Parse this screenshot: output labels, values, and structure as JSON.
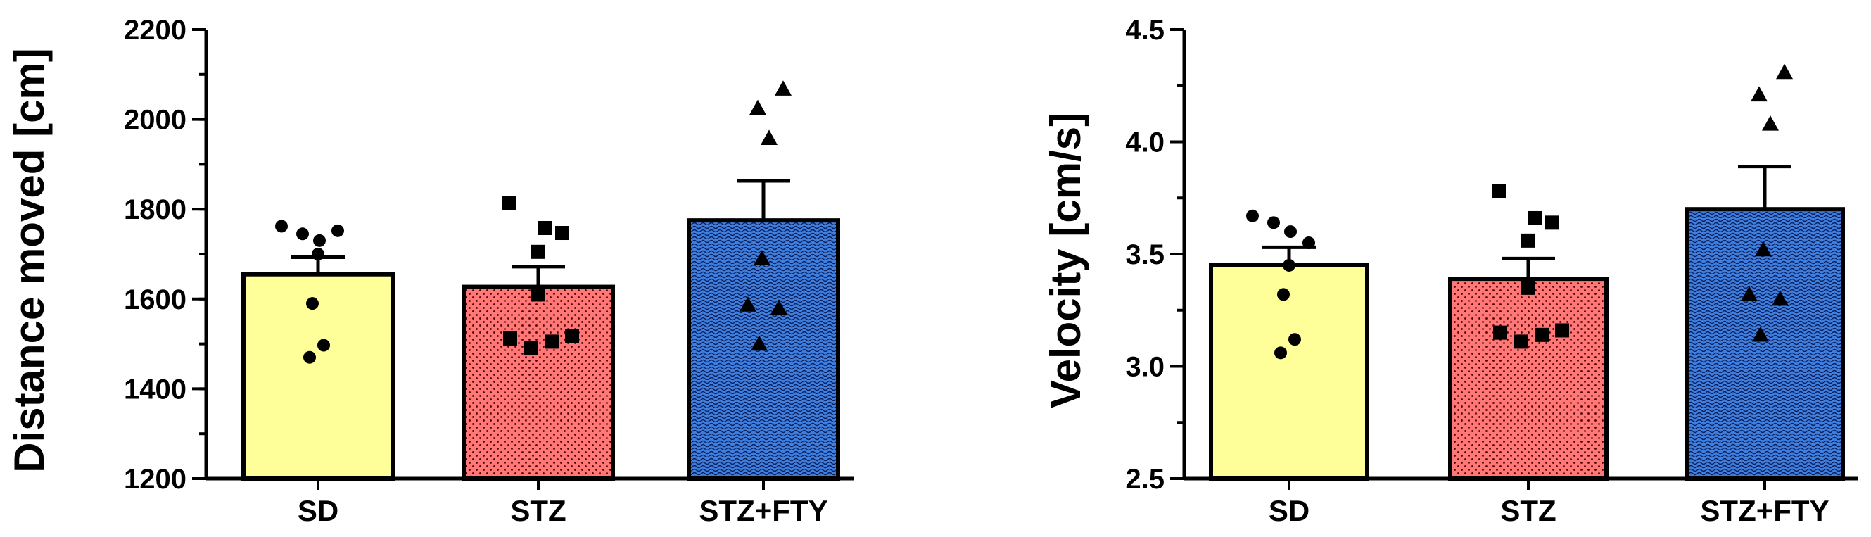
{
  "colors": {
    "SD": "#ffff99",
    "STZ": "#ff7777",
    "STZ+FTY": "#3f7fdf",
    "pattern_dot": "#4a0000",
    "pattern_wave": "#0b1f5a"
  },
  "chart_data": [
    {
      "type": "bar",
      "ylabel": "Distance moved [cm]",
      "ylim": [
        1200,
        2200
      ],
      "ytick_step": 200,
      "yminor_step": 100,
      "categories": [
        "SD",
        "STZ",
        "STZ+FTY"
      ],
      "means": [
        1655,
        1627,
        1775
      ],
      "sem": [
        38,
        45,
        88
      ],
      "markers": [
        "circle",
        "square",
        "triangle"
      ],
      "points": [
        [
          1762,
          1745,
          1730,
          1752,
          1700,
          1590,
          1497,
          1470
        ],
        [
          1813,
          1758,
          1747,
          1705,
          1610,
          1512,
          1490,
          1505,
          1517
        ],
        [
          2068,
          2025,
          1958,
          1690,
          1587,
          1580,
          1500
        ]
      ]
    },
    {
      "type": "bar",
      "ylabel": "Velocity [cm/s]",
      "ylim": [
        2.5,
        4.5
      ],
      "ytick_step": 0.5,
      "yminor_step": 0.25,
      "categories": [
        "SD",
        "STZ",
        "STZ+FTY"
      ],
      "means": [
        3.45,
        3.39,
        3.7
      ],
      "sem": [
        0.08,
        0.09,
        0.19
      ],
      "markers": [
        "circle",
        "square",
        "triangle"
      ],
      "points": [
        [
          3.67,
          3.64,
          3.6,
          3.55,
          3.45,
          3.32,
          3.12,
          3.06
        ],
        [
          3.78,
          3.66,
          3.64,
          3.56,
          3.35,
          3.15,
          3.11,
          3.14,
          3.16
        ],
        [
          4.31,
          4.21,
          4.08,
          3.52,
          3.32,
          3.3,
          3.14
        ]
      ]
    }
  ]
}
